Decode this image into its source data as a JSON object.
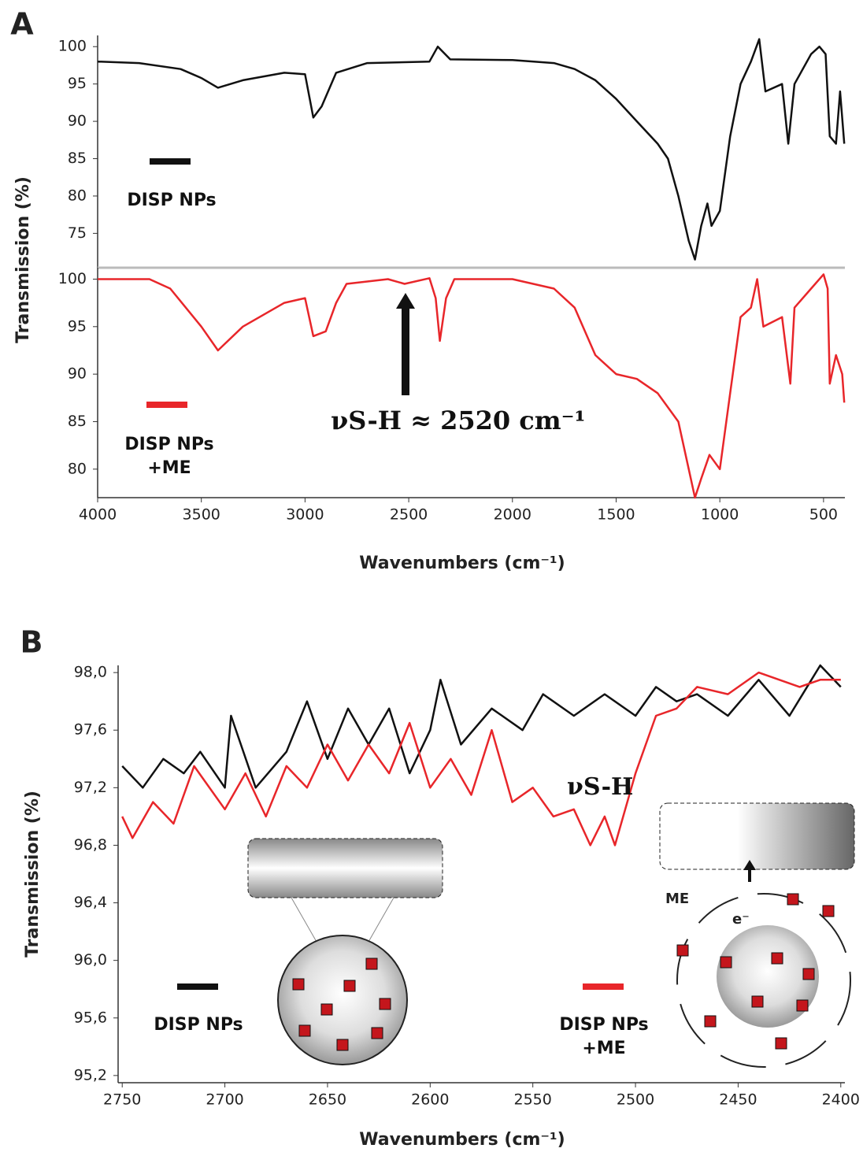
{
  "chart_data": [
    {
      "type": "line",
      "title": "A",
      "ylabel": "Transmission (%)",
      "xlim": [
        4000,
        397
      ],
      "ylim": [
        70.4,
        101.5
      ],
      "yticks": [
        75,
        80,
        85,
        90,
        95,
        100
      ],
      "series": [
        {
          "name": "DISP NPs",
          "color": "#111111",
          "x": [
            4000,
            3800,
            3600,
            3500,
            3420,
            3300,
            3100,
            3000,
            2960,
            2920,
            2850,
            2700,
            2400,
            2360,
            2300,
            2000,
            1800,
            1700,
            1600,
            1500,
            1400,
            1300,
            1250,
            1200,
            1150,
            1120,
            1090,
            1060,
            1040,
            1000,
            950,
            900,
            850,
            810,
            780,
            700,
            670,
            640,
            560,
            520,
            490,
            470,
            440,
            420,
            400
          ],
          "values": [
            98,
            97.8,
            97,
            95.8,
            94.5,
            95.5,
            96.5,
            96.3,
            90.5,
            92,
            96.5,
            97.8,
            98,
            100,
            98.3,
            98.2,
            97.8,
            97,
            95.5,
            93,
            90,
            87,
            85,
            80,
            74,
            71.5,
            76,
            79,
            76,
            78,
            88,
            95,
            98,
            101,
            94,
            95,
            87,
            95,
            99,
            100,
            99,
            88,
            87,
            94,
            87
          ]
        }
      ]
    },
    {
      "type": "line",
      "xlabel": "Wavenumbers (cm⁻¹)",
      "annotation": "νS-H ≈ 2520 cm⁻¹",
      "xlim": [
        4000,
        397
      ],
      "ylim": [
        77,
        101.2
      ],
      "yticks": [
        80,
        85,
        90,
        95,
        100
      ],
      "xticks": [
        4000,
        3500,
        3000,
        2500,
        2000,
        1500,
        1000,
        500
      ],
      "series": [
        {
          "name": "DISP NPs +ME",
          "color": "#e8262a",
          "x": [
            4000,
            3750,
            3650,
            3500,
            3420,
            3300,
            3100,
            3000,
            2960,
            2900,
            2850,
            2800,
            2600,
            2520,
            2400,
            2370,
            2350,
            2320,
            2280,
            2000,
            1800,
            1700,
            1600,
            1500,
            1400,
            1300,
            1200,
            1150,
            1120,
            1090,
            1050,
            1000,
            950,
            900,
            850,
            820,
            790,
            700,
            660,
            640,
            560,
            500,
            480,
            470,
            440,
            410,
            400
          ],
          "values": [
            100,
            100,
            99,
            95,
            92.5,
            95,
            97.5,
            98,
            94,
            94.5,
            97.5,
            99.5,
            100,
            99.5,
            100.1,
            98,
            93.5,
            98,
            100,
            100,
            99,
            97,
            92,
            90,
            89.5,
            88,
            85,
            80,
            77,
            79,
            81.5,
            80,
            88,
            96,
            97,
            100,
            95,
            96,
            89,
            97,
            99,
            100.5,
            99,
            89,
            92,
            90,
            87
          ]
        }
      ]
    },
    {
      "type": "line",
      "title": "B",
      "ylabel": "Transmission (%)",
      "xlabel": "Wavenumbers (cm⁻¹)",
      "annotation": "νS-H",
      "inset_labels": [
        "ME",
        "e⁻"
      ],
      "xlim": [
        2752,
        2398
      ],
      "ylim": [
        95.15,
        98.05
      ],
      "yticks": [
        {
          "value": 95.2,
          "label": "95,2"
        },
        {
          "value": 95.6,
          "label": "95,6"
        },
        {
          "value": 96.0,
          "label": "96,0"
        },
        {
          "value": 96.4,
          "label": "96,4"
        },
        {
          "value": 96.8,
          "label": "96,8"
        },
        {
          "value": 97.2,
          "label": "97,2"
        },
        {
          "value": 97.6,
          "label": "97,6"
        },
        {
          "value": 98.0,
          "label": "98,0"
        }
      ],
      "xticks": [
        2750,
        2700,
        2650,
        2600,
        2550,
        2500,
        2450,
        2400
      ],
      "series": [
        {
          "name": "DISP NPs",
          "color": "#111111",
          "x": [
            2750,
            2740,
            2730,
            2720,
            2712,
            2700,
            2697,
            2685,
            2670,
            2660,
            2650,
            2640,
            2630,
            2620,
            2610,
            2600,
            2595,
            2585,
            2570,
            2555,
            2545,
            2530,
            2515,
            2500,
            2490,
            2480,
            2470,
            2455,
            2440,
            2425,
            2410,
            2400
          ],
          "values": [
            97.35,
            97.2,
            97.4,
            97.3,
            97.45,
            97.2,
            97.7,
            97.2,
            97.45,
            97.8,
            97.4,
            97.75,
            97.5,
            97.75,
            97.3,
            97.6,
            97.95,
            97.5,
            97.75,
            97.6,
            97.85,
            97.7,
            97.85,
            97.7,
            97.9,
            97.8,
            97.85,
            97.7,
            97.95,
            97.7,
            98.05,
            97.9
          ]
        },
        {
          "name": "DISP NPs +ME",
          "color": "#e8262a",
          "x": [
            2750,
            2745,
            2735,
            2725,
            2715,
            2700,
            2690,
            2680,
            2670,
            2660,
            2650,
            2640,
            2630,
            2620,
            2610,
            2600,
            2590,
            2580,
            2570,
            2560,
            2550,
            2540,
            2530,
            2522,
            2515,
            2510,
            2500,
            2490,
            2480,
            2470,
            2455,
            2440,
            2420,
            2410,
            2400
          ],
          "values": [
            97.0,
            96.85,
            97.1,
            96.95,
            97.35,
            97.05,
            97.3,
            97.0,
            97.35,
            97.2,
            97.5,
            97.25,
            97.5,
            97.3,
            97.65,
            97.2,
            97.4,
            97.15,
            97.6,
            97.1,
            97.2,
            97.0,
            97.05,
            96.8,
            97.0,
            96.8,
            97.3,
            97.7,
            97.75,
            97.9,
            97.85,
            98.0,
            97.9,
            97.95,
            97.95
          ]
        }
      ]
    }
  ]
}
